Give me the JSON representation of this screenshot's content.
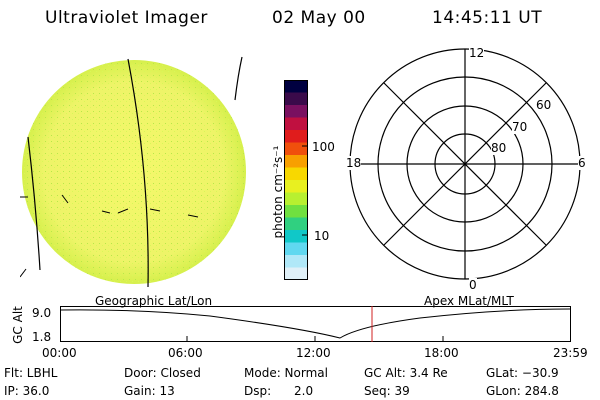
{
  "header": {
    "title": "Ultraviolet Imager",
    "date": "02 May 00",
    "time": "14:45:11 UT"
  },
  "colorbar": {
    "label": "photon cm⁻²s⁻¹",
    "tick_100": "100",
    "tick_10": "10",
    "colors": [
      "#000040",
      "#3a0a4a",
      "#7a1060",
      "#c01040",
      "#e01c1c",
      "#f0500c",
      "#f8a000",
      "#f8d800",
      "#e8f020",
      "#b8f030",
      "#70e040",
      "#30d080",
      "#10c8c8",
      "#60d8f0",
      "#b0e8f8",
      "#e0f0f8"
    ]
  },
  "polar": {
    "top": "12",
    "left": "18",
    "right": "6",
    "bottom": "0",
    "lat_60": "60",
    "lat_70": "70",
    "lat_80": "80"
  },
  "labels": {
    "geo": "Geographic Lat/Lon",
    "apex": "Apex MLat/MLT"
  },
  "altplot": {
    "ylabel": "GC Alt",
    "ytick_top": "9.0",
    "ytick_bot": "1.8",
    "xticks": [
      "00:00",
      "06:00",
      "12:00",
      "18:00",
      "23:59"
    ]
  },
  "info": {
    "flt": "Flt: LBHL",
    "ip": "IP: 36.0",
    "door": "Door: Closed",
    "gain": "Gain: 13",
    "mode": "Mode: Normal",
    "dsp": "Dsp:      2.0",
    "gcalt": "GC Alt: 3.4 Re",
    "seq": "Seq: 39",
    "glat": "GLat: −30.9",
    "glon": "GLon: 284.8"
  }
}
